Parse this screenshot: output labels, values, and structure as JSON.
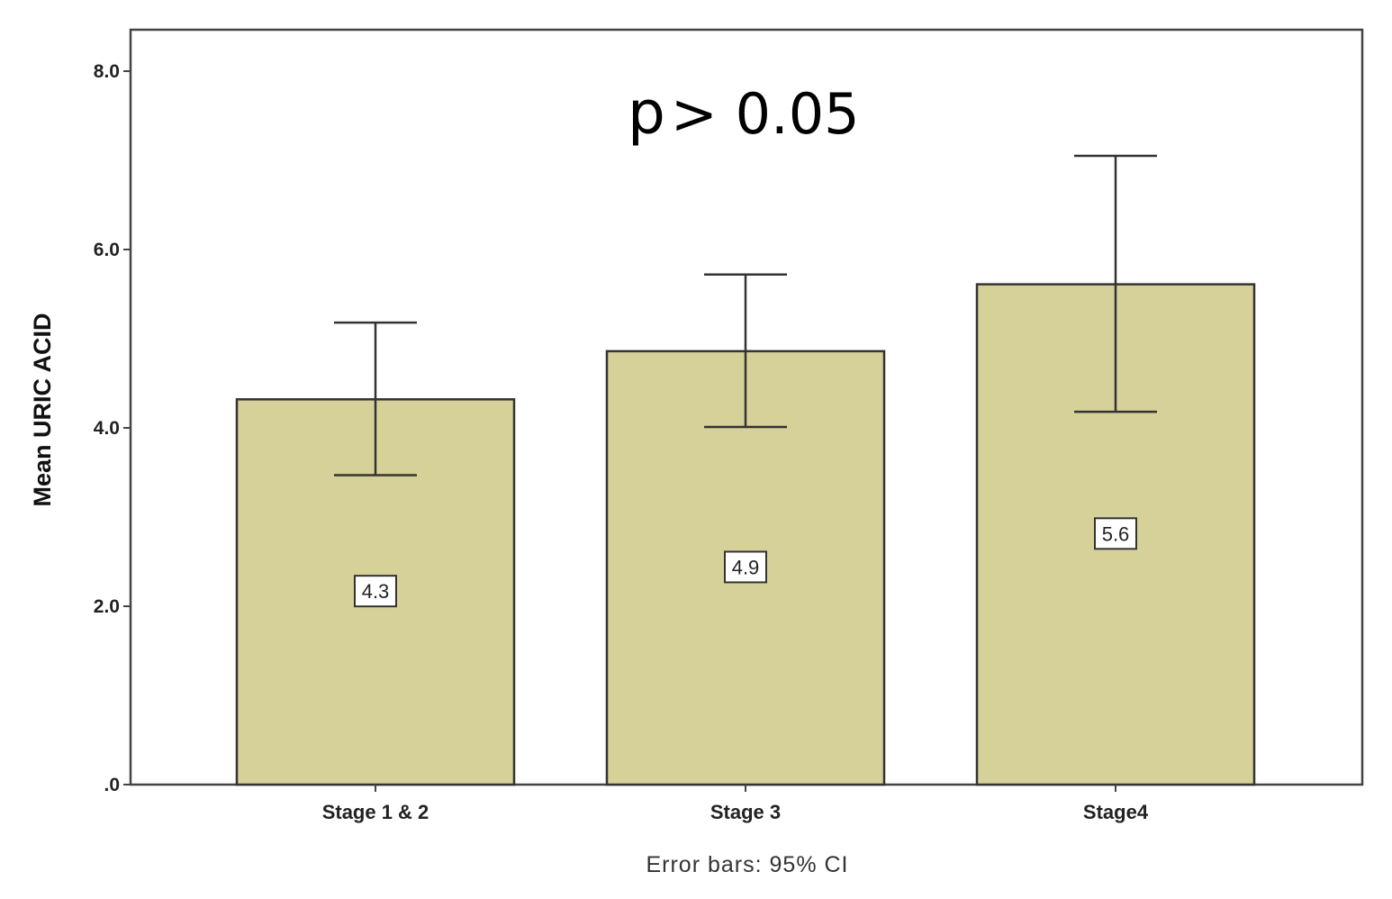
{
  "chart_data": {
    "type": "bar",
    "categories": [
      "Stage 1 & 2",
      "Stage 3",
      "Stage4"
    ],
    "series": [
      {
        "values": [
          4.32,
          4.86,
          5.61
        ],
        "data_labels": [
          "4.3",
          "4.9",
          "5.6"
        ],
        "ci_lower": [
          3.47,
          4.01,
          4.18
        ],
        "ci_upper": [
          5.18,
          5.72,
          7.05
        ]
      }
    ],
    "ylabel": "Mean URIC ACID",
    "xlabel": "",
    "ylim": [
      0,
      8.5
    ],
    "yticks": [
      0,
      2,
      4,
      6,
      8
    ],
    "ytick_labels": [
      ".0",
      "2.0",
      "4.0",
      "6.0",
      "8.0"
    ],
    "annotation": {
      "p": "p",
      "rest": "> 0.05"
    },
    "footnote": "Error bars: 95% CI",
    "grid": false,
    "legend": "none",
    "colors": {
      "bar_fill": "#d6d198",
      "bar_stroke": "#333333",
      "frame": "#444444"
    }
  }
}
